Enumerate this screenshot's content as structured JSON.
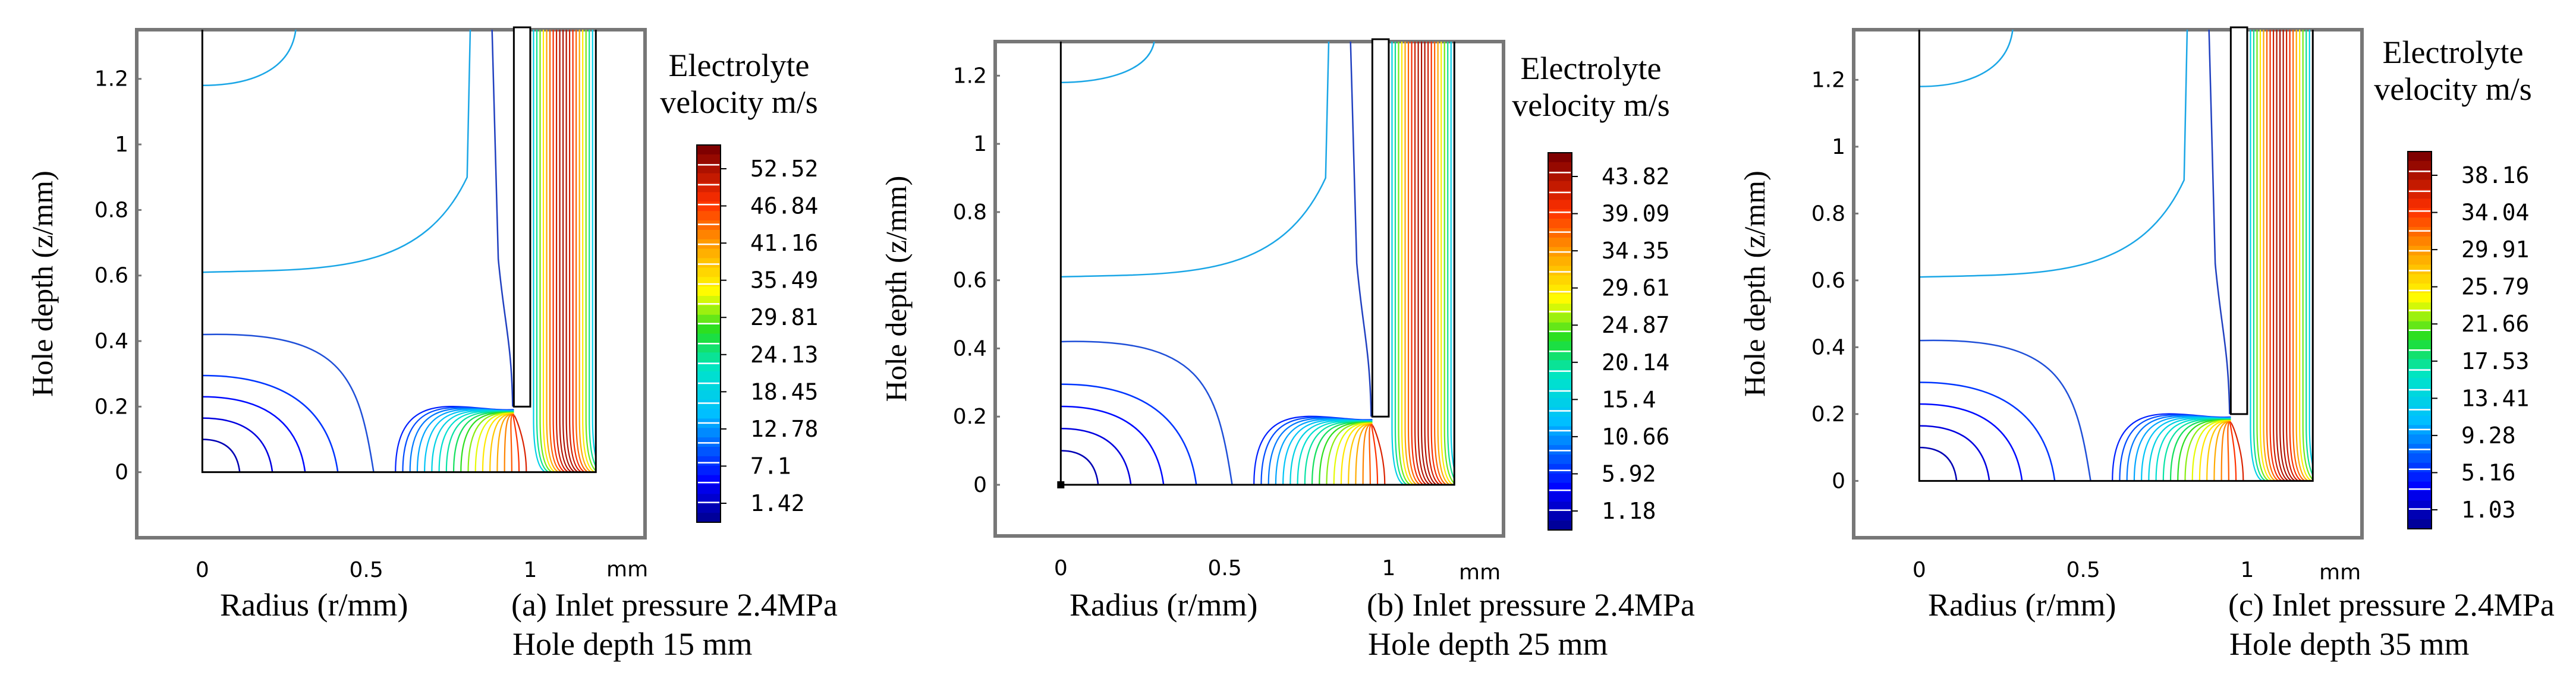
{
  "figure": {
    "panels": [
      {
        "caption_line1": "(a) Inlet pressure 2.4MPa",
        "caption_line2": "Hole depth 15 mm",
        "colorbar_title_line1": "Electrolyte",
        "colorbar_title_line2": "velocity m/s",
        "colorbar_ticks": [
          "52.52",
          "46.84",
          "41.16",
          "35.49",
          "29.81",
          "24.13",
          "18.45",
          "12.78",
          "7.1",
          "1.42"
        ]
      },
      {
        "caption_line1": "(b) Inlet pressure 2.4MPa",
        "caption_line2": "Hole depth 25 mm",
        "colorbar_title_line1": "Electrolyte",
        "colorbar_title_line2": "velocity m/s",
        "colorbar_ticks": [
          "43.82",
          "39.09",
          "34.35",
          "29.61",
          "24.87",
          "20.14",
          "15.4",
          "10.66",
          "5.92",
          "1.18"
        ]
      },
      {
        "caption_line1": "(c) Inlet pressure 2.4MPa",
        "caption_line2": "Hole depth 35 mm",
        "colorbar_title_line1": "Electrolyte",
        "colorbar_title_line2": "velocity m/s",
        "colorbar_ticks": [
          "38.16",
          "34.04",
          "29.91",
          "25.79",
          "21.66",
          "17.53",
          "13.41",
          "9.28",
          "5.16",
          "1.03"
        ]
      }
    ]
  },
  "chart_data": [
    {
      "type": "contour",
      "title": "(a) Inlet pressure 2.4MPa, Hole depth 15 mm",
      "xlabel": "Radius (r/mm)",
      "ylabel": "Hole depth (z/mm)",
      "x_unit": "mm",
      "xticks": [
        0,
        0.5,
        1
      ],
      "yticks": [
        0,
        0.2,
        0.4,
        0.6,
        0.8,
        1,
        1.2
      ],
      "xlim": [
        -0.2,
        1.35
      ],
      "ylim": [
        -0.2,
        1.35
      ],
      "domain_x": [
        0,
        1.2
      ],
      "domain_y": [
        0,
        1.35
      ],
      "tool_r": [
        0.95,
        1.0
      ],
      "tool_bottom_z": 0.2,
      "colorbar_label": "Electrolyte velocity m/s",
      "colorbar_range": [
        1.42,
        52.52
      ],
      "colorbar_ticks": [
        52.52,
        46.84,
        41.16,
        35.49,
        29.81,
        24.13,
        18.45,
        12.78,
        7.1,
        1.42
      ],
      "contour_levels": 19
    },
    {
      "type": "contour",
      "title": "(b) Inlet pressure 2.4MPa, Hole depth 25 mm",
      "xlabel": "Radius (r/mm)",
      "ylabel": "Hole depth (z/mm)",
      "x_unit": "mm",
      "xticks": [
        0,
        0.5,
        1
      ],
      "yticks": [
        0,
        0.2,
        0.4,
        0.6,
        0.8,
        1,
        1.2
      ],
      "xlim": [
        -0.2,
        1.35
      ],
      "ylim": [
        -0.15,
        1.3
      ],
      "domain_x": [
        0,
        1.2
      ],
      "domain_y": [
        0,
        1.3
      ],
      "tool_r": [
        0.95,
        1.0
      ],
      "tool_bottom_z": 0.2,
      "colorbar_label": "Electrolyte velocity m/s",
      "colorbar_range": [
        1.18,
        43.82
      ],
      "colorbar_ticks": [
        43.82,
        39.09,
        34.35,
        29.61,
        24.87,
        20.14,
        15.4,
        10.66,
        5.92,
        1.18
      ],
      "contour_levels": 19
    },
    {
      "type": "contour",
      "title": "(c) Inlet pressure 2.4MPa, Hole depth 35 mm",
      "xlabel": "Radius (r/mm)",
      "ylabel": "Hole depth (z/mm)",
      "x_unit": "mm",
      "xticks": [
        0,
        0.5,
        1
      ],
      "yticks": [
        0,
        0.2,
        0.4,
        0.6,
        0.8,
        1,
        1.2
      ],
      "xlim": [
        -0.2,
        1.35
      ],
      "ylim": [
        -0.17,
        1.35
      ],
      "domain_x": [
        0,
        1.2
      ],
      "domain_y": [
        0,
        1.35
      ],
      "tool_r": [
        0.95,
        1.0
      ],
      "tool_bottom_z": 0.2,
      "colorbar_label": "Electrolyte velocity m/s",
      "colorbar_range": [
        1.03,
        38.16
      ],
      "colorbar_ticks": [
        38.16,
        34.04,
        29.91,
        25.79,
        21.66,
        17.53,
        13.41,
        9.28,
        5.16,
        1.03
      ],
      "contour_levels": 19
    }
  ]
}
